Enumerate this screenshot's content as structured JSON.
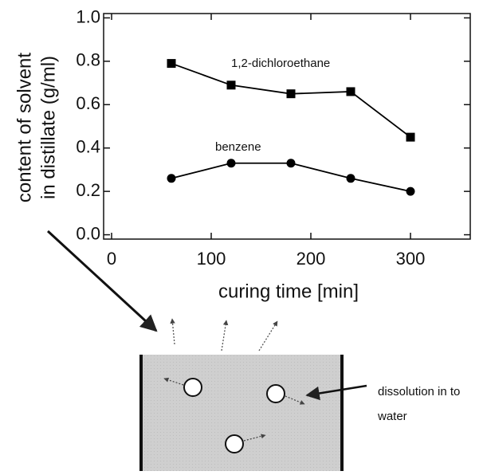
{
  "chart_data": {
    "type": "line",
    "x_label": "curing time [min]",
    "y_label": [
      "content of solvent",
      "in distillate (g/ml)"
    ],
    "x": [
      60,
      120,
      180,
      240,
      300
    ],
    "series": [
      {
        "name": "1,2-dichloroethane",
        "color": "#000000",
        "marker": "square",
        "values": [
          0.79,
          0.69,
          0.65,
          0.66,
          0.45
        ]
      },
      {
        "name": "benzene",
        "color": "#000000",
        "marker": "circle",
        "values": [
          0.26,
          0.33,
          0.33,
          0.26,
          0.2
        ]
      }
    ],
    "xlim": [
      -8,
      360
    ],
    "xticks": [
      0,
      100,
      200,
      300
    ],
    "ylim": [
      -0.02,
      1.02
    ],
    "yticks": [
      {
        "value": 0,
        "label": "0.0"
      },
      0.2,
      0.4,
      0.6,
      0.8,
      {
        "value": 1,
        "label": "1.0"
      }
    ],
    "grid": false
  },
  "diagram": {
    "note": [
      "dissolution in to",
      "water"
    ]
  }
}
